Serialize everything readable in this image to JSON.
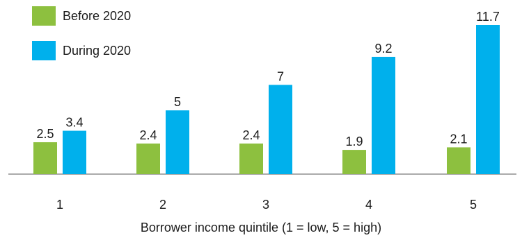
{
  "chart_data": {
    "type": "bar",
    "categories": [
      "1",
      "2",
      "3",
      "4",
      "5"
    ],
    "series": [
      {
        "name": "Before 2020",
        "values": [
          2.5,
          2.4,
          2.4,
          1.9,
          2.1
        ],
        "labels": [
          "2.5",
          "2.4",
          "2.4",
          "1.9",
          "2.1"
        ],
        "color": "#8dc03f"
      },
      {
        "name": "During 2020",
        "values": [
          3.4,
          5,
          7,
          9.2,
          11.7
        ],
        "labels": [
          "3.4",
          "5",
          "7",
          "9.2",
          "11.7"
        ],
        "color": "#00b0ec"
      }
    ],
    "xlabel": "Borrower income quintile (1 = low, 5 = high)",
    "ylabel": "",
    "ylim": [
      0,
      11.7
    ],
    "grid": false,
    "legend_position": "top-left"
  }
}
